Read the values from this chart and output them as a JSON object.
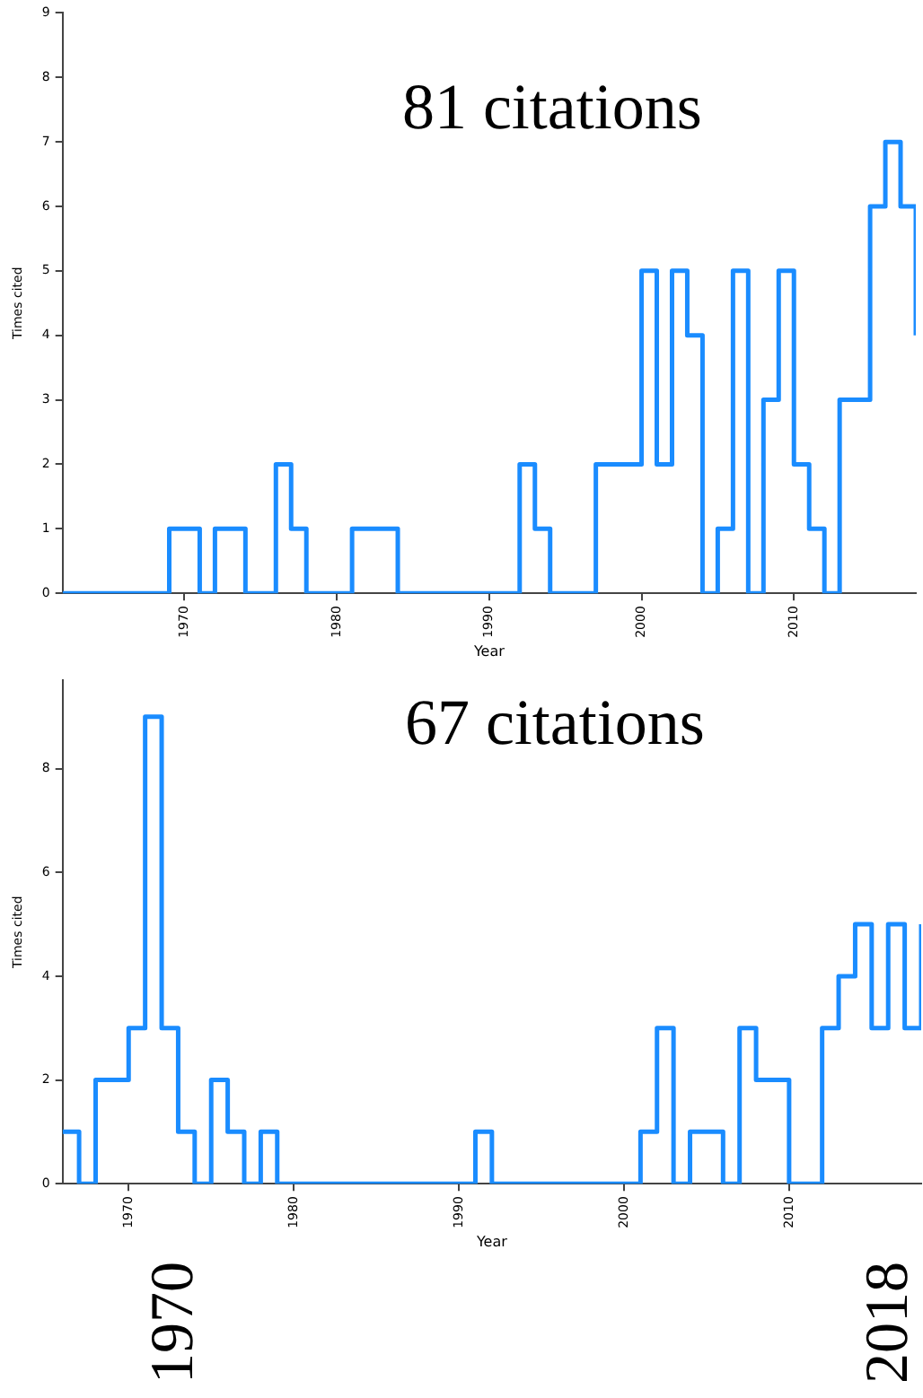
{
  "chart_data": [
    {
      "type": "step",
      "title": "81 citations",
      "xlabel": "Year",
      "ylabel": "Times cited",
      "color": "#1a8cff",
      "x": [
        1962,
        1963,
        1964,
        1965,
        1966,
        1967,
        1968,
        1969,
        1970,
        1971,
        1972,
        1973,
        1974,
        1975,
        1976,
        1977,
        1978,
        1979,
        1980,
        1981,
        1982,
        1983,
        1984,
        1985,
        1986,
        1987,
        1988,
        1989,
        1990,
        1991,
        1992,
        1993,
        1994,
        1995,
        1996,
        1997,
        1998,
        1999,
        2000,
        2001,
        2002,
        2003,
        2004,
        2005,
        2006,
        2007,
        2008,
        2009,
        2010,
        2011,
        2012,
        2013,
        2014,
        2015,
        2016,
        2017,
        2018
      ],
      "values": [
        0,
        0,
        0,
        0,
        0,
        0,
        0,
        1,
        1,
        0,
        1,
        1,
        0,
        0,
        2,
        1,
        0,
        0,
        0,
        1,
        1,
        1,
        0,
        0,
        0,
        0,
        0,
        0,
        0,
        0,
        2,
        1,
        0,
        0,
        0,
        2,
        2,
        2,
        5,
        2,
        5,
        4,
        0,
        1,
        5,
        0,
        3,
        5,
        2,
        1,
        0,
        3,
        3,
        6,
        7,
        6,
        4
      ],
      "xlim": [
        1962,
        2018
      ],
      "xticks": [
        1970,
        1980,
        1990,
        2000,
        2010
      ],
      "ylim": [
        0,
        9
      ],
      "yticks": [
        0,
        1,
        2,
        3,
        4,
        5,
        6,
        7,
        8,
        9
      ],
      "grid": false,
      "legend": false
    },
    {
      "type": "step",
      "title": "67 citations",
      "xlabel": "Year",
      "ylabel": "Times cited",
      "color": "#1a8cff",
      "x": [
        1966,
        1967,
        1968,
        1969,
        1970,
        1971,
        1972,
        1973,
        1974,
        1975,
        1976,
        1977,
        1978,
        1979,
        1980,
        1981,
        1982,
        1983,
        1984,
        1985,
        1986,
        1987,
        1988,
        1989,
        1990,
        1991,
        1992,
        1993,
        1994,
        1995,
        1996,
        1997,
        1998,
        1999,
        2000,
        2001,
        2002,
        2003,
        2004,
        2005,
        2006,
        2007,
        2008,
        2009,
        2010,
        2011,
        2012,
        2013,
        2014,
        2015,
        2016,
        2017,
        2018
      ],
      "values": [
        1,
        0,
        2,
        2,
        3,
        9,
        3,
        1,
        0,
        2,
        1,
        0,
        1,
        0,
        0,
        0,
        0,
        0,
        0,
        0,
        0,
        0,
        0,
        0,
        0,
        1,
        0,
        0,
        0,
        0,
        0,
        0,
        0,
        0,
        0,
        1,
        3,
        0,
        1,
        1,
        0,
        3,
        2,
        2,
        0,
        0,
        3,
        4,
        5,
        3,
        5,
        3,
        5
      ],
      "xlim": [
        1966,
        2018
      ],
      "xticks": [
        1970,
        1980,
        1990,
        2000,
        2010
      ],
      "ylim": [
        0,
        9.7
      ],
      "yticks": [
        0,
        2,
        4,
        6,
        8
      ],
      "grid": false,
      "legend": false,
      "annotations": [
        "1970",
        "2018"
      ]
    }
  ]
}
